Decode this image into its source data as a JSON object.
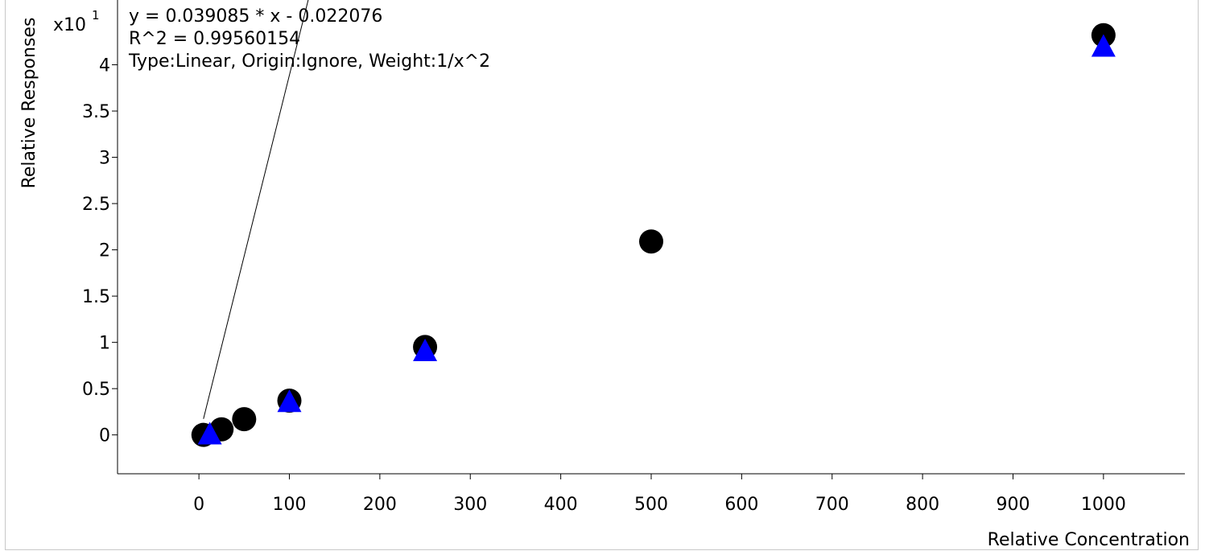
{
  "chart_data": {
    "type": "scatter",
    "title": "",
    "xlabel": "Relative Concentration",
    "ylabel": "Relative Responses",
    "y_multiplier_label": "x10",
    "y_multiplier_exponent": "1",
    "xlim": [
      -90,
      1090
    ],
    "ylim": [
      -0.42,
      4.7
    ],
    "x_ticks": [
      0,
      100,
      200,
      300,
      400,
      500,
      600,
      700,
      800,
      900,
      1000
    ],
    "y_ticks": [
      0,
      0.5,
      1,
      1.5,
      2,
      2.5,
      3,
      3.5,
      4
    ],
    "y_tick_labels": [
      "0",
      "0.5",
      "1",
      "1.5",
      "2",
      "2.5",
      "3",
      "3.5",
      "4"
    ],
    "grid": false,
    "annotations": [
      "y = 0.039085 * x  - 0.022076",
      "R^2 = 0.99560154",
      "Type:Linear, Origin:Ignore, Weight:1/x^2"
    ],
    "fit_line": {
      "slope": 0.039085,
      "intercept": -0.022076,
      "x_range": [
        5,
        1090
      ]
    },
    "series": [
      {
        "marker": "circle",
        "color": "#000000",
        "x": [
          5,
          25,
          50,
          100,
          250,
          500,
          1000
        ],
        "y": [
          0.0,
          0.06,
          0.17,
          0.37,
          0.95,
          2.09,
          4.32
        ]
      },
      {
        "marker": "triangle",
        "color": "#0000ff",
        "x": [
          12,
          100,
          250,
          1000
        ],
        "y": [
          0.01,
          0.36,
          0.91,
          4.2
        ]
      }
    ]
  }
}
